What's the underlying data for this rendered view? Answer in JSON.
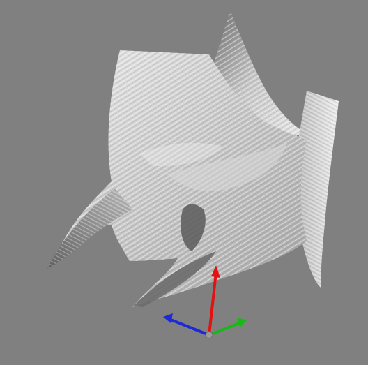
{
  "viewport": {
    "background": "#808080",
    "object": "voxelized-surface",
    "shading": "grayscale"
  },
  "axes_gizmo": {
    "x_axis_color": "#1d28d6",
    "y_axis_color": "#e01212",
    "z_axis_color": "#19b819",
    "origin_color": "#9a9a9a"
  }
}
